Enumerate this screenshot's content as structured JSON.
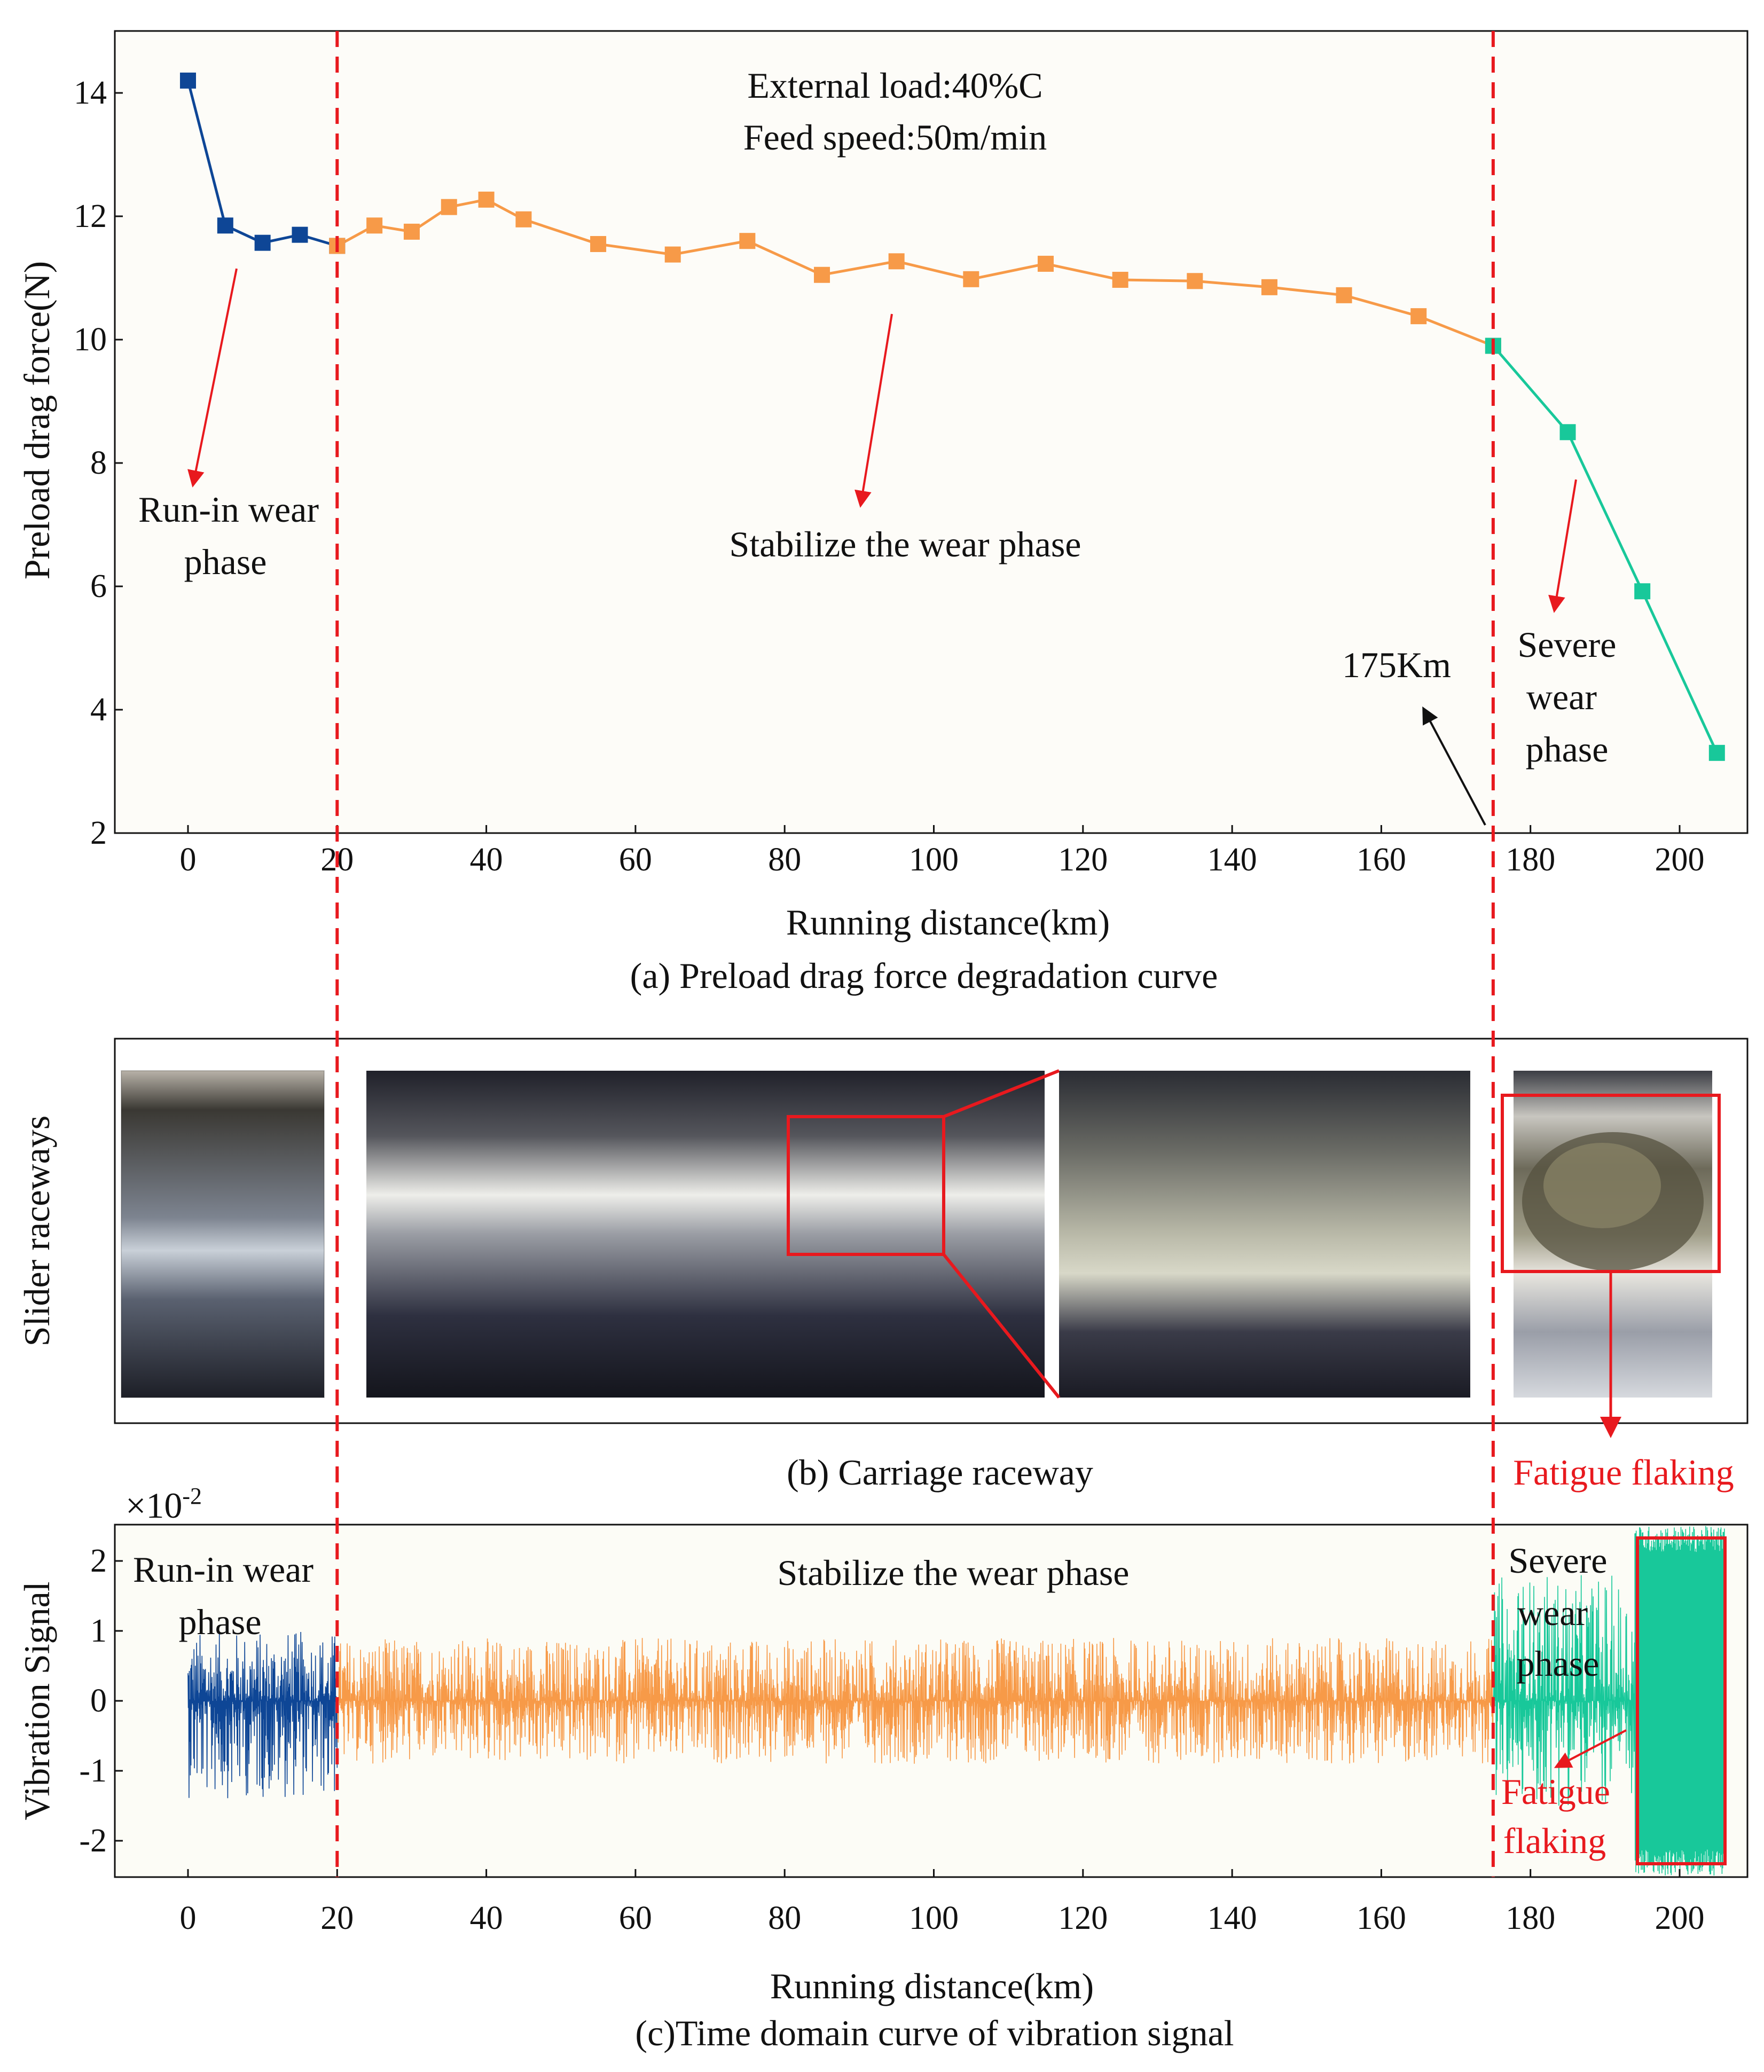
{
  "colors": {
    "runin": "#0e4696",
    "stable": "#f79a48",
    "severe": "#18c89a",
    "marker_red": "#e8191e",
    "black": "#111111",
    "panel_a_bg": "#fdfcf8",
    "panel_c_bg": "#fcfcf6"
  },
  "panel_a": {
    "caption": "(a) Preload drag force degradation curve",
    "xlabel": "Running distance(km)",
    "ylabel": "Preload drag force(N)",
    "conditions": [
      "External load:40%C",
      "Feed speed:50m/min"
    ],
    "phase_labels": {
      "runin": [
        "Run-in wear",
        "phase"
      ],
      "stable": [
        "Stabilize the wear phase"
      ],
      "severe": [
        "Severe",
        "wear",
        "phase"
      ]
    },
    "marker_label": "175Km"
  },
  "panel_b": {
    "caption": "(b) Carriage raceway",
    "ylabel": "Slider raceways",
    "annotation": "Fatigue flaking"
  },
  "panel_c": {
    "caption": "(c)Time domain curve of vibration signal",
    "xlabel": "Running distance(km)",
    "ylabel": "Vibration Signal",
    "scale_base": "×10",
    "scale_exp": "-2",
    "phase_labels": {
      "runin": [
        "Run-in wear",
        "phase"
      ],
      "stable": [
        "Stabilize the wear phase"
      ],
      "severe": [
        "Severe",
        "wear",
        "phase"
      ]
    },
    "annotation": [
      "Fatigue",
      "flaking"
    ]
  },
  "chart_data": [
    {
      "type": "line",
      "xlabel": "Running distance(km)",
      "ylabel": "Preload drag force(N)",
      "xlim": [
        -10,
        210
      ],
      "ylim": [
        2,
        15
      ],
      "xticks": [
        0,
        20,
        40,
        60,
        80,
        100,
        120,
        140,
        160,
        180,
        200
      ],
      "yticks": [
        2,
        4,
        6,
        8,
        10,
        12,
        14
      ],
      "phase_boundaries": [
        20,
        175
      ],
      "series": [
        {
          "x": [
            0,
            5,
            10,
            15,
            20
          ],
          "y": [
            14.2,
            11.85,
            11.57,
            11.7,
            11.52
          ],
          "color": "#0e4696"
        },
        {
          "x": [
            20,
            25,
            30,
            35,
            40,
            45,
            55,
            65,
            75,
            85,
            95,
            105,
            115,
            125,
            135,
            145,
            155,
            165,
            175
          ],
          "y": [
            11.52,
            11.85,
            11.75,
            12.15,
            12.27,
            11.95,
            11.55,
            11.38,
            11.6,
            11.05,
            11.27,
            10.98,
            11.23,
            10.97,
            10.95,
            10.85,
            10.72,
            10.38,
            9.9
          ],
          "color": "#f79a48"
        },
        {
          "x": [
            175,
            185,
            195,
            205
          ],
          "y": [
            9.9,
            8.5,
            5.92,
            3.3
          ],
          "color": "#18c89a"
        }
      ]
    },
    {
      "type": "line",
      "xlabel": "Running distance(km)",
      "ylabel": "Vibration Signal",
      "xlim": [
        -10,
        210
      ],
      "ylim": [
        -2.5,
        2.5
      ],
      "xticks": [
        0,
        20,
        40,
        60,
        80,
        100,
        120,
        140,
        160,
        180,
        200
      ],
      "yticks": [
        -2,
        -1,
        0,
        1,
        2
      ],
      "phase_boundaries": [
        20,
        175
      ],
      "segments": [
        {
          "x_range": [
            0,
            20
          ],
          "amplitude_range": [
            -1.4,
            1.0
          ],
          "color": "#0e4696"
        },
        {
          "x_range": [
            20,
            175
          ],
          "amplitude_range": [
            -0.9,
            0.9
          ],
          "color": "#f79a48"
        },
        {
          "x_range": [
            175,
            194
          ],
          "amplitude_range": [
            -1.5,
            1.8
          ],
          "color": "#18c89a"
        },
        {
          "x_range": [
            194,
            206
          ],
          "amplitude_range": [
            -2.5,
            2.5
          ],
          "color": "#18c89a"
        }
      ]
    }
  ]
}
